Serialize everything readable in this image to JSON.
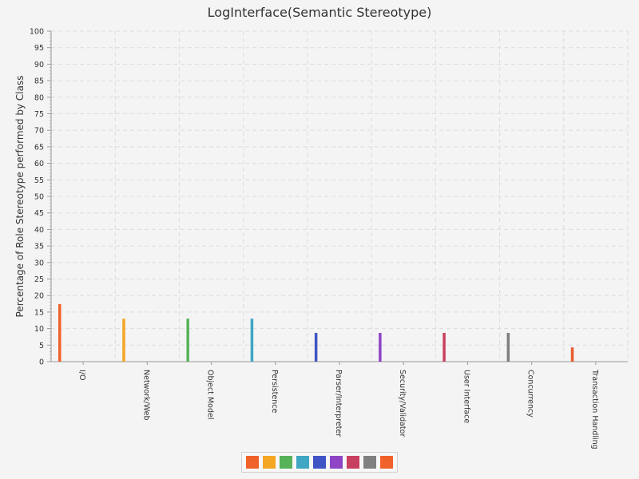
{
  "chart_data": {
    "type": "bar",
    "title": "LogInterface(Semantic Stereotype)",
    "xlabel": "",
    "ylabel": "Percentage of Role Stereotype performed by Class",
    "ylim": [
      0,
      100
    ],
    "ytick_step": 5,
    "grid": true,
    "legend_position": "bottom",
    "categories": [
      "I/O",
      "Network/Web",
      "Object Model",
      "Persistence",
      "Parser/Interpreter",
      "Security/Validator",
      "User Interface",
      "Concurrency",
      "Transaction Handling"
    ],
    "values": [
      17.4,
      13.0,
      13.0,
      13.0,
      8.7,
      8.7,
      8.7,
      8.7,
      4.3
    ],
    "colors": [
      "#f0622a",
      "#f5a623",
      "#57b25a",
      "#3fa6c4",
      "#4054c4",
      "#8e44c4",
      "#c8405f",
      "#808080",
      "#e95b2f"
    ],
    "legend_swatches": [
      "#f0622a",
      "#f5a623",
      "#57b25a",
      "#3fa6c4",
      "#4054c4",
      "#8e44c4",
      "#c8405f",
      "#808080",
      "#f0622a"
    ]
  }
}
